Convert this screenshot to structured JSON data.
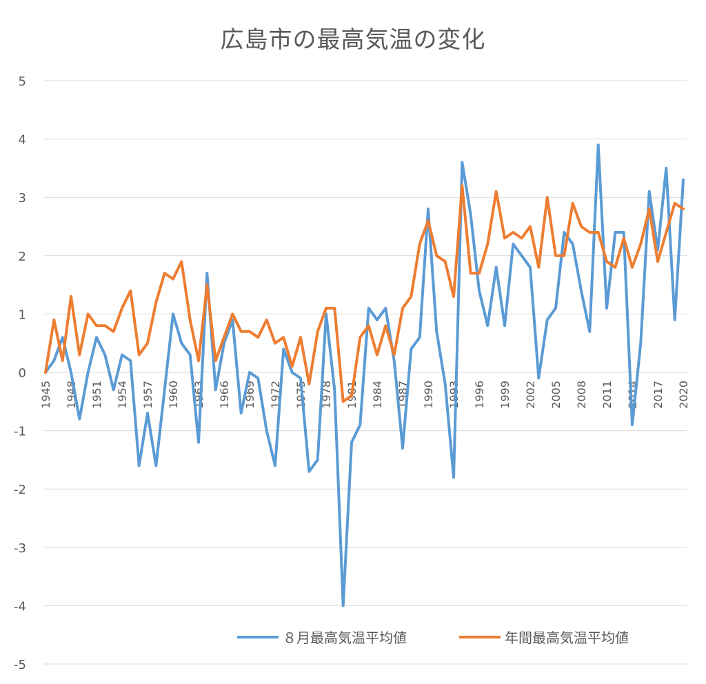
{
  "chart_data": {
    "type": "line",
    "title": "広島市の最高気温の変化",
    "xlabel": "",
    "ylabel": "",
    "ylim": [
      -5,
      5
    ],
    "yticks": [
      "5",
      "4",
      "3",
      "2",
      "1",
      "0",
      "-1",
      "-2",
      "-3",
      "-4",
      "-5"
    ],
    "x_tick_labels": [
      "1945",
      "1948",
      "1951",
      "1954",
      "1957",
      "1960",
      "1963",
      "1966",
      "1969",
      "1972",
      "1975",
      "1978",
      "1981",
      "1984",
      "1987",
      "1990",
      "1993",
      "1996",
      "1999",
      "2002",
      "2005",
      "2008",
      "2011",
      "2014",
      "2017",
      "2020"
    ],
    "grid": "horizontal",
    "legend_position": "bottom",
    "x": [
      1945,
      1946,
      1947,
      1948,
      1949,
      1950,
      1951,
      1952,
      1953,
      1954,
      1955,
      1956,
      1957,
      1958,
      1959,
      1960,
      1961,
      1962,
      1963,
      1964,
      1965,
      1966,
      1967,
      1968,
      1969,
      1970,
      1971,
      1972,
      1973,
      1974,
      1975,
      1976,
      1977,
      1978,
      1979,
      1980,
      1981,
      1982,
      1983,
      1984,
      1985,
      1986,
      1987,
      1988,
      1989,
      1990,
      1991,
      1992,
      1993,
      1994,
      1995,
      1996,
      1997,
      1998,
      1999,
      2000,
      2001,
      2002,
      2003,
      2004,
      2005,
      2006,
      2007,
      2008,
      2009,
      2010,
      2011,
      2012,
      2013,
      2014,
      2015,
      2016,
      2017,
      2018,
      2019,
      2020
    ],
    "series": [
      {
        "name": "８月最高気温平均値",
        "color": "#5b9bd5",
        "values": [
          0,
          0.2,
          0.6,
          0,
          -0.8,
          0,
          0.6,
          0.3,
          -0.3,
          0.3,
          0.2,
          -1.6,
          -0.7,
          -1.6,
          -0.3,
          1.0,
          0.5,
          0.3,
          -1.2,
          1.7,
          -0.3,
          0.5,
          0.9,
          -0.7,
          0,
          -0.1,
          -1.0,
          -1.6,
          0.4,
          0,
          -0.1,
          -1.7,
          -1.5,
          1.0,
          -0.3,
          -4.0,
          -1.2,
          -0.9,
          1.1,
          0.9,
          1.1,
          0.2,
          -1.3,
          0.4,
          0.6,
          2.8,
          0.7,
          -0.2,
          -1.8,
          3.6,
          2.7,
          1.4,
          0.8,
          1.8,
          0.8,
          2.2,
          2.0,
          1.8,
          -0.1,
          0.9,
          1.1,
          2.4,
          2.2,
          1.4,
          0.7,
          3.9,
          1.1,
          2.4,
          2.4,
          -0.9,
          0.5,
          3.1,
          2.1,
          3.5,
          0.9,
          3.3
        ]
      },
      {
        "name": "年間最高気温平均値",
        "color": "#ed7d31",
        "values": [
          0,
          0.9,
          0.2,
          1.3,
          0.3,
          1.0,
          0.8,
          0.8,
          0.7,
          1.1,
          1.4,
          0.3,
          0.5,
          1.2,
          1.7,
          1.6,
          1.9,
          0.9,
          0.2,
          1.5,
          0.2,
          0.6,
          1.0,
          0.7,
          0.7,
          0.6,
          0.9,
          0.5,
          0.6,
          0.1,
          0.6,
          -0.2,
          0.7,
          1.1,
          1.1,
          -0.5,
          -0.4,
          0.6,
          0.8,
          0.3,
          0.8,
          0.3,
          1.1,
          1.3,
          2.2,
          2.6,
          2.0,
          1.9,
          1.3,
          3.2,
          1.7,
          1.7,
          2.2,
          3.1,
          2.3,
          2.4,
          2.3,
          2.5,
          1.8,
          3.0,
          2.0,
          2.0,
          2.9,
          2.5,
          2.4,
          2.4,
          1.9,
          1.8,
          2.3,
          1.8,
          2.2,
          2.8,
          1.9,
          2.4,
          2.9,
          2.8
        ]
      }
    ]
  }
}
